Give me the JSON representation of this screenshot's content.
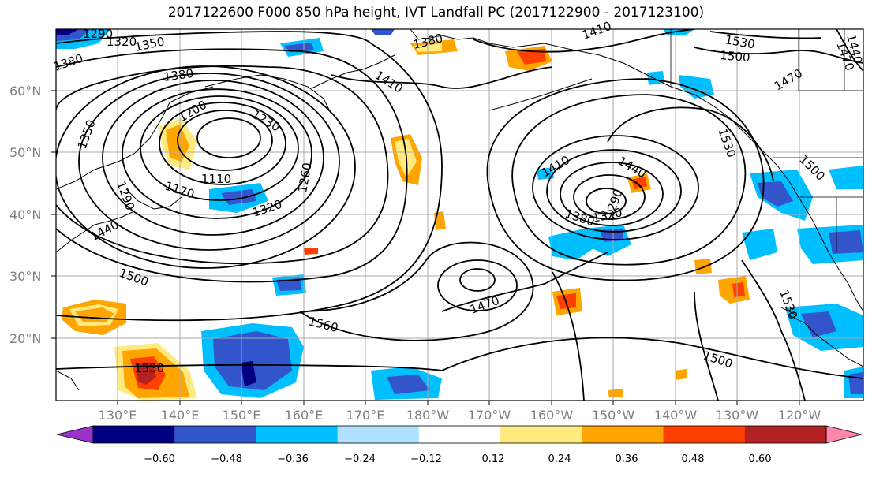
{
  "title": "2017122600 F000 850 hPa height, IVT Landfall PC (2017122900 - 2017123100)",
  "lat_ticks": [
    "60°N",
    "50°N",
    "40°N",
    "30°N",
    "20°N"
  ],
  "lon_ticks": [
    "130°E",
    "140°E",
    "150°E",
    "160°E",
    "170°E",
    "180°W",
    "170°W",
    "160°W",
    "150°W",
    "140°W",
    "130°W",
    "120°W"
  ],
  "contour_labels": [
    "1290",
    "1320",
    "1350",
    "1380",
    "1380",
    "1350",
    "1290",
    "1170",
    "1110",
    "1200",
    "1230",
    "1260",
    "1320",
    "1440",
    "1500",
    "1410",
    "1380",
    "1410",
    "1440",
    "1380",
    "1320",
    "1290",
    "1470",
    "1560",
    "1530",
    "1500",
    "1530",
    "1500",
    "1470",
    "1440",
    "1410",
    "1530",
    "1530",
    "1500",
    "1470"
  ],
  "colorbar": {
    "ticks": [
      "−0.60",
      "−0.48",
      "−0.36",
      "−0.24",
      "−0.12",
      "0.12",
      "0.24",
      "0.36",
      "0.48",
      "0.60"
    ],
    "colors": [
      "#9933cc",
      "#000080",
      "#3355cc",
      "#00bfff",
      "#b0e2ff",
      "#ffffff",
      "#ffea80",
      "#ffa500",
      "#ff4000",
      "#b22222",
      "#ff88aa"
    ]
  }
}
